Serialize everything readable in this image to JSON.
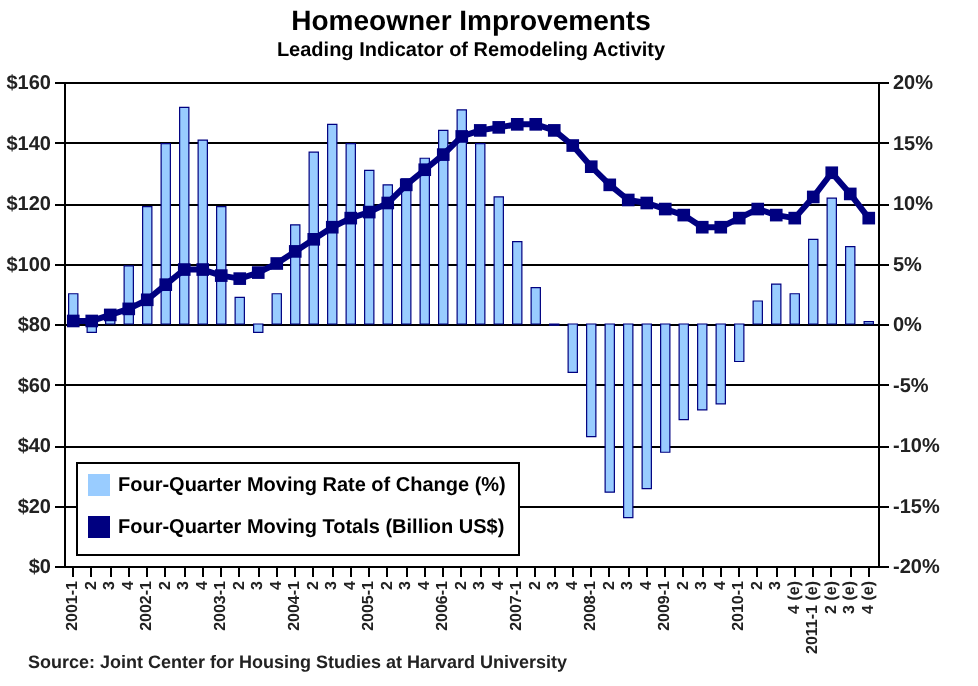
{
  "chart_data": {
    "type": "bar",
    "title": "Homeowner Improvements",
    "subtitle": "Leading Indicator of Remodeling Activity",
    "categories": [
      "2001-1",
      "2",
      "3",
      "4",
      "2002-1",
      "2",
      "3",
      "4",
      "2003-1",
      "2",
      "3",
      "4",
      "2004-1",
      "2",
      "3",
      "4",
      "2005-1",
      "2",
      "3",
      "4",
      "2006-1",
      "2",
      "3",
      "4",
      "2007-1",
      "2",
      "3",
      "4",
      "2008-1",
      "2",
      "3",
      "4",
      "2009-1",
      "2",
      "3",
      "4",
      "2010-1",
      "2",
      "3",
      "4 (e)",
      "2011-1 (e)",
      "2 (e)",
      "3 (e)",
      "4 (e)"
    ],
    "series": [
      {
        "name": "Four-Quarter Moving Rate of Change (%)",
        "axis": "y2",
        "color": "#99ccff",
        "values": [
          2.5,
          -0.7,
          0.3,
          4.8,
          9.7,
          14.9,
          17.9,
          15.2,
          9.7,
          2.2,
          -0.7,
          2.5,
          8.2,
          14.2,
          16.5,
          14.9,
          12.7,
          11.5,
          12.0,
          13.7,
          16.0,
          17.7,
          14.9,
          10.5,
          6.8,
          3.0,
          -0.1,
          -4.0,
          -9.3,
          -13.9,
          -16.0,
          -13.6,
          -10.6,
          -7.9,
          -7.1,
          -6.6,
          -3.1,
          1.9,
          3.3,
          2.5,
          7.0,
          10.4,
          6.4,
          0.2
        ]
      },
      {
        "name": "Four-Quarter Moving Totals (Billion US$)",
        "type": "line",
        "axis": "y",
        "color": "#000080",
        "marker": "square",
        "values": [
          81,
          81,
          83,
          85,
          88,
          93,
          98,
          98,
          96,
          95,
          97,
          100,
          104,
          108,
          112,
          115,
          117,
          120,
          126,
          131,
          136,
          142,
          144,
          145,
          146,
          146,
          144,
          139,
          132,
          126,
          121,
          120,
          118,
          116,
          112,
          112,
          115,
          118,
          116,
          115,
          122,
          130,
          123,
          115
        ]
      }
    ],
    "ylim": [
      0,
      160
    ],
    "yticks": [
      {
        "value": 0,
        "label": "$0"
      },
      {
        "value": 20,
        "label": "$20"
      },
      {
        "value": 40,
        "label": "$40"
      },
      {
        "value": 60,
        "label": "$60"
      },
      {
        "value": 80,
        "label": "$80"
      },
      {
        "value": 100,
        "label": "$100"
      },
      {
        "value": 120,
        "label": "$120"
      },
      {
        "value": 140,
        "label": "$140"
      },
      {
        "value": 160,
        "label": "$160"
      }
    ],
    "y2lim": [
      -20,
      20
    ],
    "y2ticks": [
      {
        "value": -20,
        "label": "-20%"
      },
      {
        "value": -15,
        "label": "-15%"
      },
      {
        "value": -10,
        "label": "-10%"
      },
      {
        "value": -5,
        "label": "-5%"
      },
      {
        "value": 0,
        "label": "0%"
      },
      {
        "value": 5,
        "label": "5%"
      },
      {
        "value": 10,
        "label": "10%"
      },
      {
        "value": 15,
        "label": "15%"
      },
      {
        "value": 20,
        "label": "20%"
      }
    ],
    "grid": "y",
    "legend": "bottom left",
    "annotations": [
      "Source: Joint Center for Housing Studies at Harvard University"
    ]
  }
}
